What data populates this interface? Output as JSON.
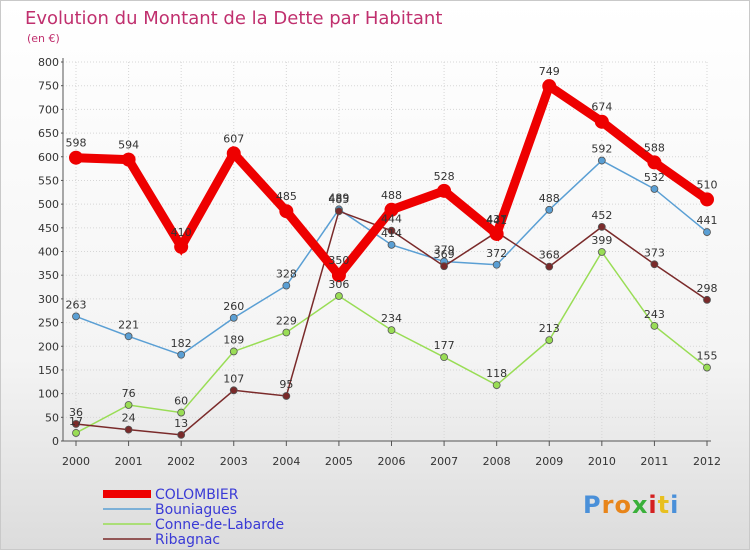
{
  "chart_data": {
    "type": "line",
    "title": "Evolution du Montant de la Dette par Habitant",
    "subtitle": "(en €)",
    "ylim": [
      0,
      800
    ],
    "y_ticks": [
      0,
      50,
      100,
      150,
      200,
      250,
      300,
      350,
      400,
      450,
      500,
      550,
      600,
      650,
      700,
      750,
      800
    ],
    "x": [
      "2000",
      "2001",
      "2002",
      "2003",
      "2004",
      "2005",
      "2006",
      "2007",
      "2008",
      "2009",
      "2010",
      "2011",
      "2012"
    ],
    "grid": true,
    "legend_position": "bottom-left",
    "series": [
      {
        "name": "COLOMBIER",
        "color": "#ee0000",
        "text_color": "#3a3ad6",
        "emphasis": true,
        "values": [
          598,
          594,
          410,
          607,
          485,
          350,
          488,
          528,
          437,
          749,
          674,
          588,
          510
        ]
      },
      {
        "name": "Bouniagues",
        "color": "#5a9fd4",
        "text_color": "#3a3ad6",
        "values": [
          263,
          221,
          182,
          260,
          328,
          489,
          414,
          379,
          372,
          488,
          592,
          532,
          441
        ]
      },
      {
        "name": "Conne-de-Labarde",
        "color": "#99dd55",
        "text_color": "#3a3ad6",
        "values": [
          17,
          76,
          60,
          189,
          229,
          306,
          234,
          177,
          118,
          213,
          399,
          243,
          155
        ]
      },
      {
        "name": "Ribagnac",
        "color": "#7a2a2a",
        "text_color": "#3a3ad6",
        "values": [
          36,
          24,
          13,
          107,
          95,
          485,
          444,
          369,
          441,
          368,
          452,
          373,
          298
        ]
      }
    ]
  },
  "colors": {
    "title": "#c0306e",
    "axis": "#555555",
    "grid": "#d6d6d6"
  },
  "logo": {
    "text": "Proxiti",
    "letter_colors": [
      "#4a90d9",
      "#e8851a",
      "#e8851a",
      "#3ab03a",
      "#d42020",
      "#e8c020",
      "#4a90d9"
    ]
  }
}
